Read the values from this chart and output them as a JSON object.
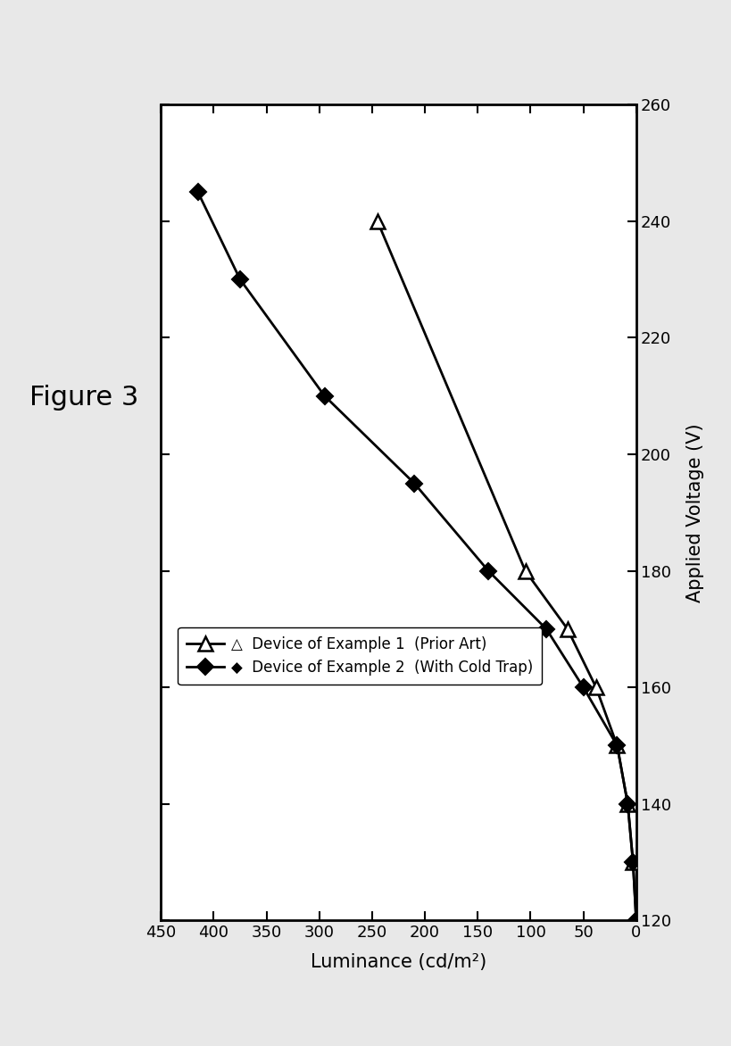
{
  "title": "Figure 3",
  "xlabel": "Luminance (cd/m²)",
  "ylabel": "Applied Voltage (V)",
  "xlim_left": 450,
  "xlim_right": 0,
  "ylim_bottom": 120,
  "ylim_top": 260,
  "xticks": [
    0,
    50,
    100,
    150,
    200,
    250,
    300,
    350,
    400,
    450
  ],
  "yticks": [
    120,
    140,
    160,
    180,
    200,
    220,
    240,
    260
  ],
  "series1_label": "  Device of Example 1  (Prior Art)",
  "series2_label": "  Device of Example 2  (With Cold Trap)",
  "series1_lum": [
    0,
    3,
    8,
    18,
    38,
    65,
    105,
    245
  ],
  "series1_volt": [
    120,
    130,
    140,
    150,
    160,
    170,
    180,
    240
  ],
  "series2_lum": [
    0,
    3,
    8,
    18,
    50,
    85,
    140,
    210,
    295,
    375,
    415
  ],
  "series2_volt": [
    120,
    130,
    140,
    150,
    160,
    170,
    180,
    195,
    210,
    230,
    245
  ],
  "background_color": "#ffffff",
  "page_color": "#e8e8e8",
  "line_color": "#000000",
  "marker1": "^",
  "marker2": "D",
  "markersize1": 12,
  "markersize2": 9,
  "linewidth": 2.0,
  "title_fontsize": 22,
  "label_fontsize": 15,
  "tick_fontsize": 13,
  "legend_fontsize": 12
}
